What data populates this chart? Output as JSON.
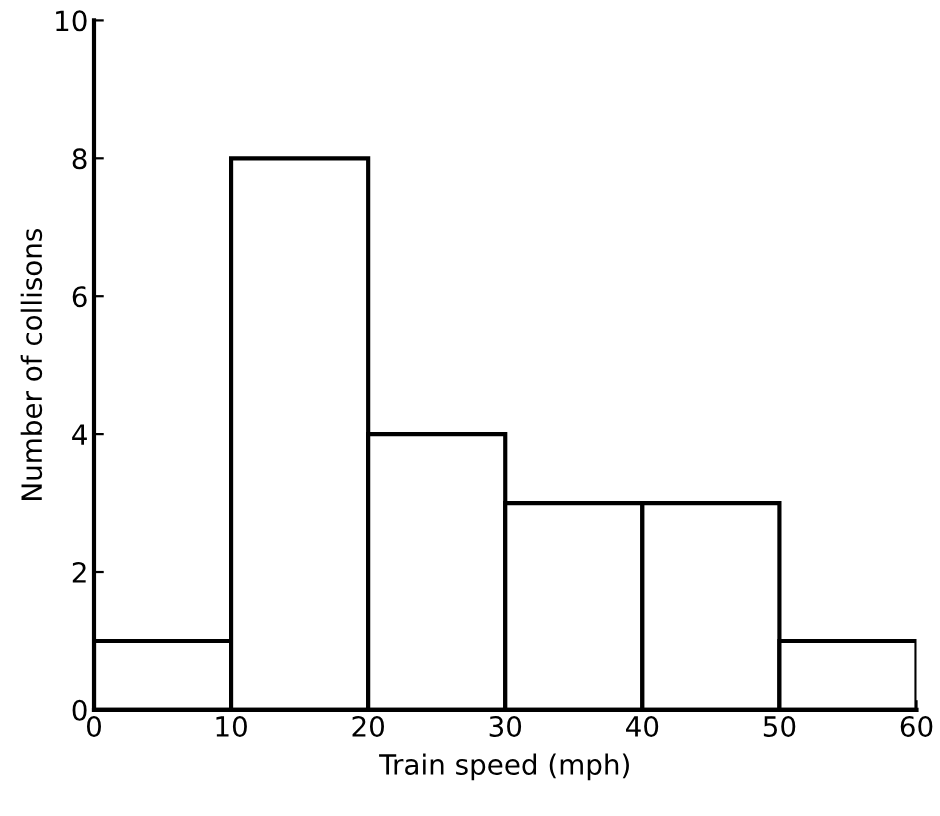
{
  "chart_data": {
    "type": "histogram",
    "xlabel": "Train speed (mph)",
    "ylabel": "Number of collisons",
    "bins": [
      0,
      10,
      20,
      30,
      40,
      50,
      60
    ],
    "values": [
      1,
      8,
      4,
      3,
      3,
      1
    ],
    "color": "#ffffff",
    "xlim": [
      0,
      60
    ],
    "xticks": [
      0,
      10,
      20,
      30,
      40,
      50,
      60
    ],
    "ylim": [
      0,
      10
    ],
    "yticks": [
      0,
      2,
      4,
      6,
      8,
      10
    ],
    "grid": false
  }
}
